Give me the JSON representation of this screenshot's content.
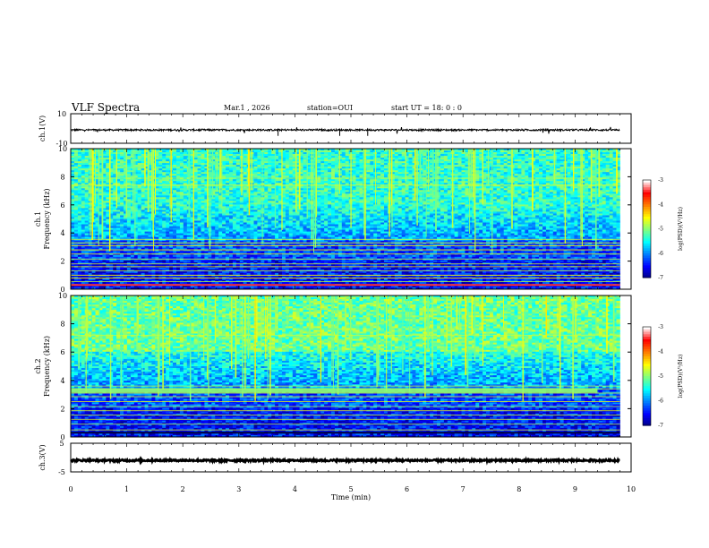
{
  "header": {
    "title": "VLF Spectra",
    "date": "Mar.1  , 2026",
    "station": "station=OUI",
    "start_time": "start  UT  =   18: 0  : 0"
  },
  "chart_data": [
    {
      "type": "line",
      "panel": "ch1-waveform",
      "ylabel": "ch.1(V)",
      "ylim": [
        -10,
        10
      ],
      "yticks": [
        "10",
        "-10"
      ],
      "xlim": [
        0,
        10
      ],
      "trace_level": -1,
      "color": "#000000"
    },
    {
      "type": "heatmap",
      "panel": "ch1-spectrogram",
      "ylabel": "ch.1\nFrequency (kHz)",
      "ylim": [
        0,
        10
      ],
      "yticks": [
        "0",
        "2",
        "4",
        "6",
        "8",
        "10"
      ],
      "xlim": [
        0,
        10
      ],
      "data_extent_min": 9.8,
      "colorbar": {
        "label": "log(PSD)(V²/Hz)",
        "range": [
          -7,
          -3
        ],
        "ticks": [
          "-3",
          "-4",
          "-5",
          "-6",
          "-7"
        ]
      },
      "lines_khz": [
        0.3,
        0.55,
        0.8,
        1.0,
        1.3,
        1.6,
        1.8,
        2.15,
        2.5,
        2.8,
        3.1,
        3.3,
        3.55,
        7.4,
        7.9
      ]
    },
    {
      "type": "heatmap",
      "panel": "ch2-spectrogram",
      "ylabel": "ch.2\nFrequency (kHz)",
      "ylim": [
        0,
        10
      ],
      "yticks": [
        "0",
        "2",
        "4",
        "6",
        "8",
        "10"
      ],
      "xlim": [
        0,
        10
      ],
      "data_extent_min": 9.8,
      "colorbar": {
        "label": "log(PSD)(V²/Hz)",
        "range": [
          -7,
          -3
        ],
        "ticks": [
          "-3",
          "-4",
          "-5",
          "-6",
          "-7"
        ]
      },
      "lines_khz": [
        0.5,
        0.9,
        1.25,
        1.55,
        1.85,
        2.15,
        2.5,
        2.85,
        3.1,
        3.4,
        3.6,
        7.2
      ]
    },
    {
      "type": "line",
      "panel": "ch3-waveform",
      "ylabel": "ch.3(V)",
      "ylim": [
        -5,
        5
      ],
      "yticks": [
        "5",
        "-5"
      ],
      "xlim": [
        0,
        10
      ],
      "trace_level": -1,
      "color": "#000000"
    }
  ],
  "x_axis": {
    "label": "Time  (min)",
    "ticks": [
      "0",
      "1",
      "2",
      "3",
      "4",
      "5",
      "6",
      "7",
      "8",
      "9",
      "10"
    ]
  },
  "colorscale": [
    "#00007f",
    "#0000ff",
    "#007fff",
    "#00ffff",
    "#7fff7f",
    "#ffff00",
    "#ff7f00",
    "#ff0000",
    "#ffffff"
  ]
}
